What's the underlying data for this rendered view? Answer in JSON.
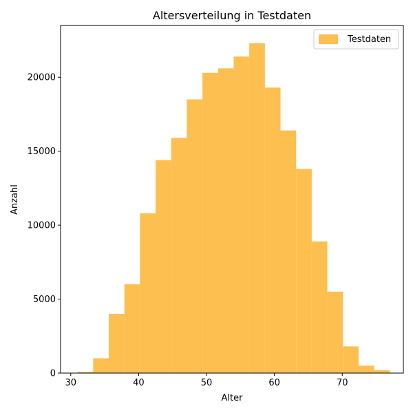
{
  "chart_data": {
    "type": "bar",
    "title": "Altersverteilung in Testdaten",
    "xlabel": "Alter",
    "ylabel": "Anzahl",
    "xlim": [
      28.5,
      79
    ],
    "ylim": [
      0,
      23500
    ],
    "xticks": [
      30,
      40,
      50,
      60,
      70
    ],
    "yticks": [
      0,
      5000,
      10000,
      15000,
      20000
    ],
    "grid": false,
    "legend_position": "top-right",
    "color": "#fdbf4f",
    "series": [
      {
        "name": "Testdaten",
        "bins": [
          [
            31.0,
            33.3,
            80
          ],
          [
            33.3,
            35.6,
            1000
          ],
          [
            35.6,
            37.9,
            4000
          ],
          [
            37.9,
            40.2,
            6000
          ],
          [
            40.2,
            42.5,
            10800
          ],
          [
            42.5,
            44.8,
            14400
          ],
          [
            44.8,
            47.1,
            15900
          ],
          [
            47.1,
            49.4,
            18500
          ],
          [
            49.4,
            51.7,
            20300
          ],
          [
            51.7,
            54.0,
            20600
          ],
          [
            54.0,
            56.3,
            21400
          ],
          [
            56.3,
            58.6,
            22300
          ],
          [
            58.6,
            60.9,
            19300
          ],
          [
            60.9,
            63.2,
            16400
          ],
          [
            63.2,
            65.5,
            13800
          ],
          [
            65.5,
            67.8,
            8900
          ],
          [
            67.8,
            70.1,
            5500
          ],
          [
            70.1,
            72.4,
            1800
          ],
          [
            72.4,
            74.7,
            500
          ],
          [
            74.7,
            77.0,
            200
          ]
        ]
      }
    ]
  }
}
